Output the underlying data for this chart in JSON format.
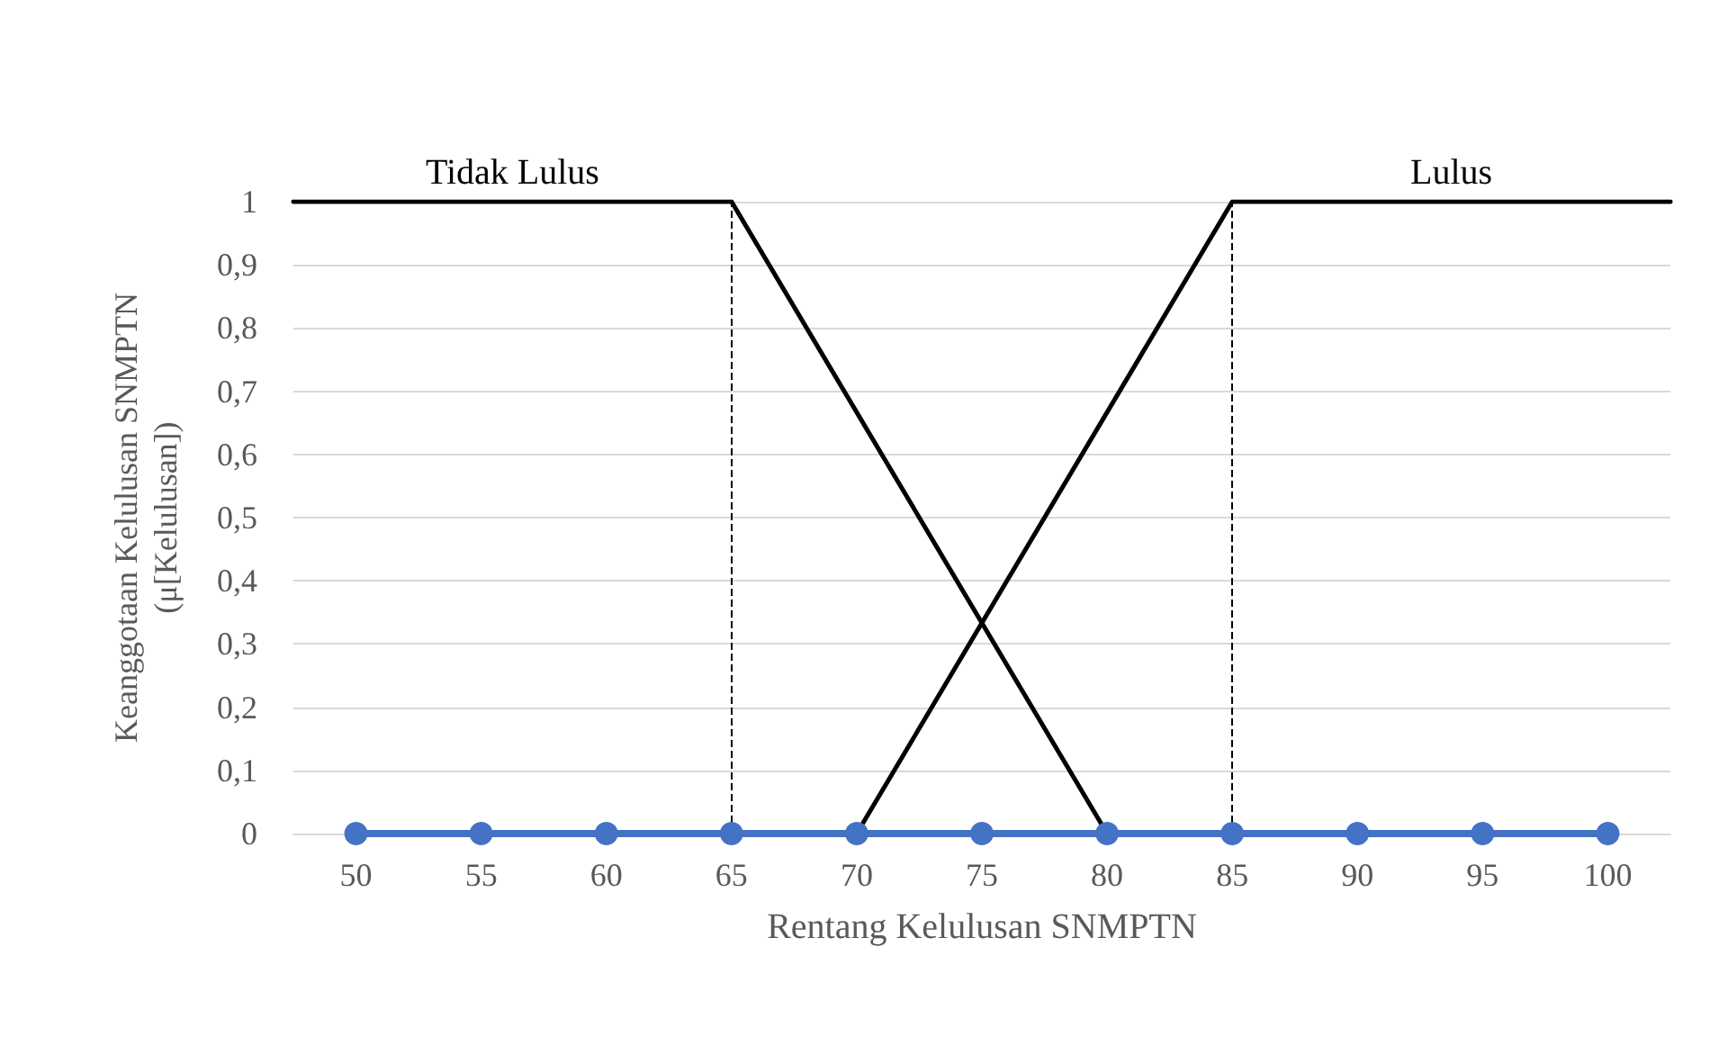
{
  "chart_data": {
    "type": "line",
    "xlabel": "Rentang Kelulusan SNMPTN",
    "ylabel": "Keanggotaan Kelulusan SNMPTN\n(μ[Kelulusan])",
    "xlim": [
      47.5,
      102.5
    ],
    "xticks": [
      50,
      55,
      60,
      65,
      70,
      75,
      80,
      85,
      90,
      95,
      100
    ],
    "ylim": [
      0,
      1
    ],
    "yticks": [
      0,
      {
        "value": 0.1,
        "label": "0,1"
      },
      {
        "value": 0.2,
        "label": "0,2"
      },
      {
        "value": 0.3,
        "label": "0,3"
      },
      {
        "value": 0.4,
        "label": "0,4"
      },
      {
        "value": 0.5,
        "label": "0,5"
      },
      {
        "value": 0.6,
        "label": "0,6"
      },
      {
        "value": 0.7,
        "label": "0,7"
      },
      {
        "value": 0.8,
        "label": "0,8"
      },
      {
        "value": 0.9,
        "label": "0,9"
      },
      1
    ],
    "grid": "y",
    "legend": false,
    "line_style": "solid",
    "series": [
      {
        "name": "Tidak Lulus",
        "color": "#000000",
        "marker": "none",
        "x": [
          47.5,
          65,
          80
        ],
        "values": [
          1,
          1,
          0
        ]
      },
      {
        "name": "Lulus",
        "color": "#000000",
        "marker": "none",
        "x": [
          70,
          85,
          102.5
        ],
        "values": [
          0,
          1,
          1
        ]
      },
      {
        "color": "#4472c4",
        "marker": "circle",
        "x": [
          50,
          55,
          60,
          65,
          70,
          75,
          80,
          85,
          90,
          95,
          100
        ],
        "values": [
          0,
          0,
          0,
          0,
          0,
          0,
          0,
          0,
          0,
          0,
          0
        ]
      }
    ],
    "ref_lines": [
      {
        "axis": "x",
        "value": 65,
        "color": "#000000",
        "line_style": "dashed"
      },
      {
        "axis": "x",
        "value": 85,
        "color": "#000000",
        "line_style": "dashed"
      }
    ]
  }
}
